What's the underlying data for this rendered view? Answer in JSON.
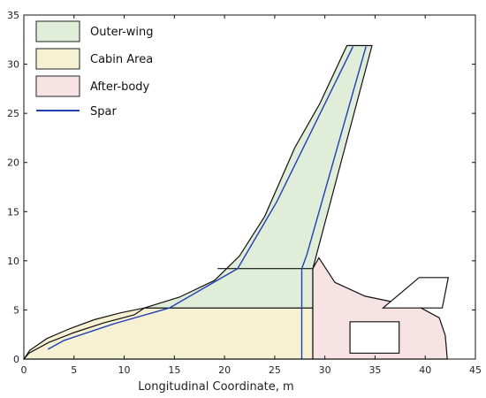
{
  "chart_data": {
    "type": "diagram",
    "title": "",
    "xlabel": "Longitudinal Coordinate, m",
    "ylabel": "",
    "xlim": [
      0,
      45
    ],
    "ylim": [
      0,
      35
    ],
    "xticks": [
      "0",
      "5",
      "10",
      "15",
      "20",
      "25",
      "30",
      "35",
      "40",
      "45"
    ],
    "yticks": [
      "0",
      "5",
      "10",
      "15",
      "20",
      "25",
      "30",
      "35"
    ],
    "legend_position": "top-left",
    "legend": [
      {
        "label": "Outer-wing",
        "kind": "patch",
        "fill": "#e0edd9",
        "stroke": "#222222"
      },
      {
        "label": "Cabin Area",
        "kind": "patch",
        "fill": "#f7f1d3",
        "stroke": "#222222"
      },
      {
        "label": "After-body",
        "kind": "patch",
        "fill": "#f7e3e3",
        "stroke": "#222222"
      },
      {
        "label": "Spar",
        "kind": "line",
        "stroke": "#1f3fb5"
      }
    ],
    "colors": {
      "outer_wing": "#e0edd9",
      "cabin": "#f7f1d3",
      "after_body": "#f7e3e3",
      "spar": "#1f3fb5",
      "outline": "#111111"
    },
    "regions": {
      "cabin": [
        [
          0,
          0
        ],
        [
          0.6,
          0.9
        ],
        [
          2.3,
          2.1
        ],
        [
          4.6,
          3.1
        ],
        [
          7,
          4
        ],
        [
          9.6,
          4.7
        ],
        [
          12,
          5.2
        ],
        [
          28.8,
          5.2
        ],
        [
          28.8,
          0
        ]
      ],
      "outer_wing": [
        [
          12,
          5.2
        ],
        [
          15.5,
          6.3
        ],
        [
          19,
          8
        ],
        [
          21.5,
          10.5
        ],
        [
          24,
          14.5
        ],
        [
          27,
          21.5
        ],
        [
          29.5,
          26
        ],
        [
          32.2,
          31.9
        ],
        [
          34.7,
          31.9
        ],
        [
          28.8,
          9.2
        ],
        [
          28.8,
          5.2
        ]
      ],
      "after_body": [
        [
          28.8,
          0
        ],
        [
          28.8,
          9.2
        ],
        [
          29.4,
          10.3
        ],
        [
          31,
          7.8
        ],
        [
          34,
          6.4
        ],
        [
          37.3,
          5.7
        ],
        [
          39.4,
          5.3
        ],
        [
          41.4,
          4.2
        ],
        [
          42,
          2.4
        ],
        [
          42.2,
          0
        ]
      ],
      "fin": [
        [
          35.8,
          5.2
        ],
        [
          40.3,
          5.2
        ],
        [
          41.7,
          5.2
        ],
        [
          42.3,
          8.3
        ],
        [
          39.4,
          8.3
        ]
      ],
      "window": [
        [
          32.5,
          0.6
        ],
        [
          37.4,
          0.6
        ],
        [
          37.4,
          3.8
        ],
        [
          32.5,
          3.8
        ]
      ],
      "mid_line": [
        [
          19.3,
          9.2
        ],
        [
          28.8,
          9.2
        ]
      ],
      "front_outline": [
        [
          0,
          0
        ],
        [
          0.5,
          0.6
        ],
        [
          2.5,
          1.7
        ],
        [
          5,
          2.7
        ],
        [
          8,
          3.7
        ],
        [
          11,
          4.5
        ],
        [
          12,
          5.2
        ]
      ]
    },
    "series": [
      {
        "name": "Spar",
        "points": [
          [
            2.4,
            1.0
          ],
          [
            4,
            1.9
          ],
          [
            9,
            3.6
          ],
          [
            14.5,
            5.2
          ],
          [
            21.3,
            9.2
          ],
          [
            25.2,
            16
          ],
          [
            32.8,
            31.8
          ]
        ]
      },
      {
        "name": "Spar",
        "points": [
          [
            27.7,
            0
          ],
          [
            27.7,
            9.2
          ],
          [
            28.2,
            10.6
          ],
          [
            34.1,
            31.8
          ]
        ]
      }
    ]
  }
}
